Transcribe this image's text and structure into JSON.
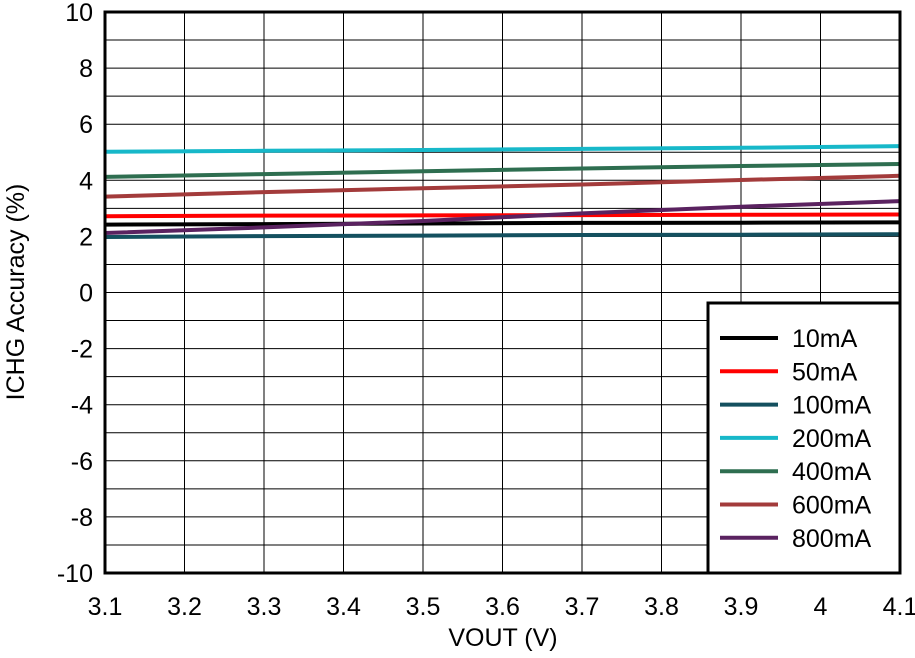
{
  "chart_data": {
    "type": "line",
    "title": "",
    "xlabel": "VOUT (V)",
    "ylabel": "ICHG Accuracy (%)",
    "xlim": [
      3.1,
      4.1
    ],
    "ylim": [
      -10,
      10
    ],
    "grid": true,
    "legend_position": "bottom-right",
    "x_ticks": [
      3.1,
      3.2,
      3.3,
      3.4,
      3.5,
      3.6,
      3.7,
      3.8,
      3.9,
      4,
      4.1
    ],
    "x_tick_labels": [
      "3.1",
      "3.2",
      "3.3",
      "3.4",
      "3.5",
      "3.6",
      "3.7",
      "3.8",
      "3.9",
      "4",
      "4.1"
    ],
    "y_ticks": [
      -10,
      -8,
      -6,
      -4,
      -2,
      0,
      2,
      4,
      6,
      8,
      10
    ],
    "y_tick_labels": [
      "-10",
      "-8",
      "-6",
      "-4",
      "-2",
      "0",
      "2",
      "4",
      "6",
      "8",
      "10"
    ],
    "x": [
      3.1,
      3.3,
      3.5,
      3.7,
      3.9,
      4.1
    ],
    "series": [
      {
        "name": "10mA",
        "color": "#000000",
        "values": [
          2.42,
          2.44,
          2.46,
          2.48,
          2.49,
          2.5
        ]
      },
      {
        "name": "50mA",
        "color": "#ff0000",
        "values": [
          2.72,
          2.74,
          2.75,
          2.76,
          2.77,
          2.78
        ]
      },
      {
        "name": "100mA",
        "color": "#14505f",
        "values": [
          1.98,
          2.01,
          2.03,
          2.05,
          2.06,
          2.08
        ]
      },
      {
        "name": "200mA",
        "color": "#17b8c9",
        "values": [
          5.02,
          5.05,
          5.08,
          5.12,
          5.16,
          5.22
        ]
      },
      {
        "name": "400mA",
        "color": "#2e6e50",
        "values": [
          4.12,
          4.22,
          4.32,
          4.42,
          4.51,
          4.58
        ]
      },
      {
        "name": "600mA",
        "color": "#a33b3b",
        "values": [
          3.42,
          3.58,
          3.72,
          3.85,
          4.01,
          4.16
        ]
      },
      {
        "name": "800mA",
        "color": "#5a2260",
        "values": [
          2.12,
          2.32,
          2.55,
          2.82,
          3.06,
          3.26
        ]
      }
    ]
  }
}
